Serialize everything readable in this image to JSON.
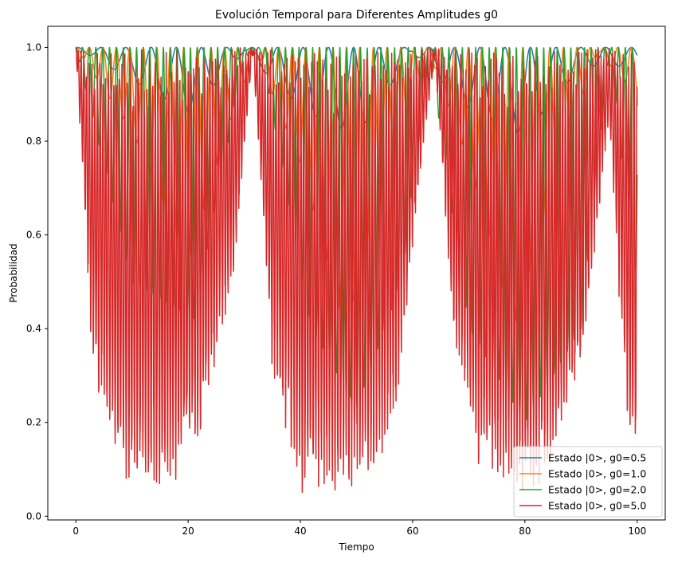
{
  "chart_data": {
    "type": "line",
    "title": "Evolución Temporal para Diferentes Amplitudes g0",
    "xlabel": "Tiempo",
    "ylabel": "Probabilidad",
    "xlim": [
      -5,
      105
    ],
    "ylim": [
      -0.008,
      1.045
    ],
    "x_ticks": [
      0,
      20,
      40,
      60,
      80,
      100
    ],
    "x_tick_labels": [
      "0",
      "20",
      "40",
      "60",
      "80",
      "100"
    ],
    "y_ticks": [
      0.0,
      0.2,
      0.4,
      0.6,
      0.8,
      1.0
    ],
    "y_tick_labels": [
      "0.0",
      "0.2",
      "0.4",
      "0.6",
      "0.8",
      "1.0"
    ],
    "grid": false,
    "legend_position": "lower-right",
    "x_range": [
      0,
      100
    ],
    "series": [
      {
        "name": "Estado |0>, g0=0.5",
        "color": "#1f77b4",
        "minimum_envelope": [
          [
            0,
            1.0
          ],
          [
            10,
            0.93
          ],
          [
            20,
            0.86
          ],
          [
            30,
            0.99
          ],
          [
            40,
            0.87
          ],
          [
            50,
            0.81
          ],
          [
            60,
            0.99
          ],
          [
            70,
            0.87
          ],
          [
            80,
            0.81
          ],
          [
            90,
            0.96
          ],
          [
            100,
            0.96
          ]
        ]
      },
      {
        "name": "Estado |0>, g0=1.0",
        "color": "#ff7f0e",
        "minimum_envelope": [
          [
            0,
            1.0
          ],
          [
            10,
            0.82
          ],
          [
            20,
            0.54
          ],
          [
            28,
            0.86
          ],
          [
            32,
            0.99
          ],
          [
            40,
            0.75
          ],
          [
            48,
            0.4
          ],
          [
            56,
            0.75
          ],
          [
            63,
            0.99
          ],
          [
            70,
            0.75
          ],
          [
            78,
            0.4
          ],
          [
            86,
            0.75
          ],
          [
            93,
            0.99
          ],
          [
            100,
            0.9
          ]
        ]
      },
      {
        "name": "Estado |0>, g0=2.0",
        "color": "#2ca02c",
        "minimum_envelope": [
          [
            0,
            1.0
          ],
          [
            10,
            0.5
          ],
          [
            21,
            0.42
          ],
          [
            30,
            0.98
          ],
          [
            33,
            0.99
          ],
          [
            42,
            0.4
          ],
          [
            50,
            0.23
          ],
          [
            58,
            0.5
          ],
          [
            63,
            0.99
          ],
          [
            70,
            0.4
          ],
          [
            80,
            0.2
          ],
          [
            90,
            0.4
          ],
          [
            95,
            0.99
          ],
          [
            100,
            0.5
          ]
        ]
      },
      {
        "name": "Estado |0>, g0=5.0",
        "color": "#d62728",
        "minimum_envelope": [
          [
            0,
            1.0
          ],
          [
            3,
            0.3
          ],
          [
            8,
            0.08
          ],
          [
            16,
            0.04
          ],
          [
            22,
            0.15
          ],
          [
            28,
            0.5
          ],
          [
            31.5,
            0.99
          ],
          [
            35,
            0.3
          ],
          [
            40,
            0.05
          ],
          [
            46,
            0.05
          ],
          [
            52,
            0.06
          ],
          [
            57,
            0.2
          ],
          [
            62,
            0.8
          ],
          [
            64,
            0.98
          ],
          [
            67,
            0.4
          ],
          [
            72,
            0.09
          ],
          [
            79,
            0.04
          ],
          [
            84,
            0.08
          ],
          [
            90,
            0.3
          ],
          [
            95,
            0.85
          ],
          [
            98,
            0.2
          ],
          [
            100,
            0.08
          ]
        ]
      }
    ]
  }
}
